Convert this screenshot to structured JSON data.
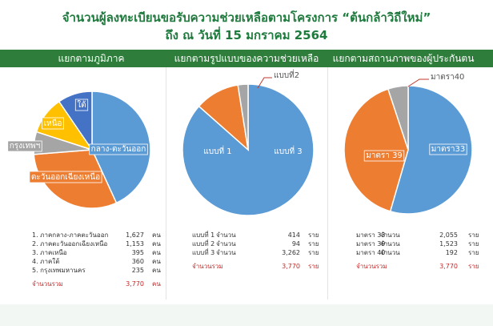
{
  "header": {
    "line1": "จำนวนผู้ลงทะเบียนขอรับความช่วยเหลือตามโครงการ “ต้นกล้าวิถีใหม่”",
    "line2": "ถึง ณ วันที่ 15 มกราคม 2564"
  },
  "colors": {
    "blue": "#5b9bd5",
    "orange": "#ed7d31",
    "gray": "#a5a5a5",
    "yellow": "#ffc000",
    "navy": "#4472c4",
    "band": "#2e7d3b",
    "total": "#c62828"
  },
  "chart_data": [
    {
      "type": "pie",
      "title": "แยกตามภูมิภาค",
      "slices": [
        {
          "label": "กลาง-ตะวันออก",
          "value": 1627,
          "color": "#5b9bd5"
        },
        {
          "label": "ตะวันออกเฉียงเหนือ",
          "value": 1153,
          "color": "#ed7d31"
        },
        {
          "label": "กรุงเทพฯ",
          "value": 235,
          "color": "#a5a5a5"
        },
        {
          "label": "เหนือ",
          "value": 395,
          "color": "#ffc000"
        },
        {
          "label": "ใต้",
          "value": 360,
          "color": "#4472c4"
        }
      ],
      "table": [
        {
          "label": "1. ภาคกลาง-ภาคตะวันออก",
          "value": "1,627",
          "unit": "คน"
        },
        {
          "label": "2. ภาคตะวันออกเฉียงเหนือ",
          "value": "1,153",
          "unit": "คน"
        },
        {
          "label": "3. ภาคเหนือ",
          "value": "395",
          "unit": "คน"
        },
        {
          "label": "4. ภาคใต้",
          "value": "360",
          "unit": "คน"
        },
        {
          "label": "5. กรุงเทพมหานคร",
          "value": "235",
          "unit": "คน"
        }
      ],
      "total": {
        "label": "จำนวนรวม",
        "value": "3,770",
        "unit": "คน"
      }
    },
    {
      "type": "pie",
      "title": "แยกตามรูปแบบของความช่วยเหลือ",
      "slices": [
        {
          "label": "แบบที่ 3",
          "value": 3262,
          "color": "#5b9bd5"
        },
        {
          "label": "แบบที่ 1",
          "value": 414,
          "color": "#ed7d31"
        },
        {
          "label": "แบบที่2",
          "value": 94,
          "color": "#a5a5a5"
        }
      ],
      "table": [
        {
          "label": "แบบที่ 1",
          "mid": "จำนวน",
          "value": "414",
          "unit": "ราย"
        },
        {
          "label": "แบบที่ 2",
          "mid": "จำนวน",
          "value": "94",
          "unit": "ราย"
        },
        {
          "label": "แบบที่ 3",
          "mid": "จำนวน",
          "value": "3,262",
          "unit": "ราย"
        }
      ],
      "total": {
        "label": "จำนวนรวม",
        "value": "3,770",
        "unit": "ราย"
      }
    },
    {
      "type": "pie",
      "title": "แยกตามสถานภาพของผู้ประกันตน",
      "slices": [
        {
          "label": "มาตรา33",
          "value": 2055,
          "color": "#5b9bd5"
        },
        {
          "label": "มาตรา 39",
          "value": 1523,
          "color": "#ed7d31"
        },
        {
          "label": "มาตรา40",
          "value": 192,
          "color": "#a5a5a5"
        }
      ],
      "table": [
        {
          "label": "มาตรา 33",
          "mid": "จำนวน",
          "value": "2,055",
          "unit": "ราย"
        },
        {
          "label": "มาตรา 39",
          "mid": "จำนวน",
          "value": "1,523",
          "unit": "ราย"
        },
        {
          "label": "มาตรา 40",
          "mid": "จำนวน",
          "value": "192",
          "unit": "ราย"
        }
      ],
      "total": {
        "label": "จำนวนรวม",
        "value": "3,770",
        "unit": "ราย"
      }
    }
  ]
}
